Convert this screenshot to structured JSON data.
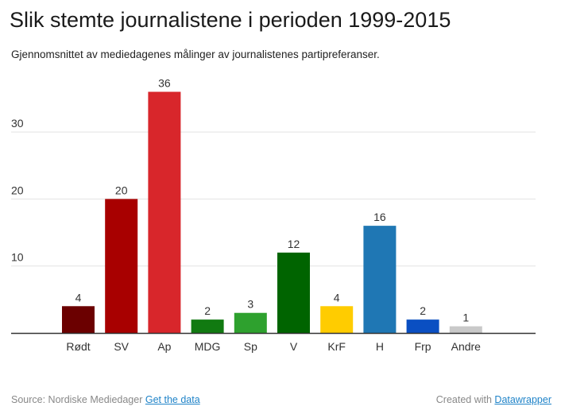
{
  "header": {
    "title": "Slik stemte journalistene i perioden 1999-2015",
    "subtitle": "Gjennomsnittet av mediedagenes målinger av journalistenes partipreferanser."
  },
  "footer": {
    "source_label": "Source: Nordiske Mediedager",
    "get_data_label": "Get the data",
    "created_label": "Created with",
    "datawrapper_label": "Datawrapper"
  },
  "chart_data": {
    "type": "bar",
    "title": "Slik stemte journalistene i perioden 1999-2015",
    "subtitle": "Gjennomsnittet av mediedagenes målinger av journalistenes partipreferanser.",
    "xlabel": "",
    "ylabel": "",
    "ylim": [
      0,
      36
    ],
    "yticks": [
      10,
      20,
      30
    ],
    "grid": true,
    "categories": [
      "Rødt",
      "SV",
      "Ap",
      "MDG",
      "Sp",
      "V",
      "KrF",
      "H",
      "Frp",
      "Andre"
    ],
    "values": [
      4,
      20,
      36,
      2,
      3,
      12,
      4,
      16,
      2,
      1
    ],
    "colors": [
      "#6b0000",
      "#a80000",
      "#d8262b",
      "#117a11",
      "#2ea12e",
      "#006400",
      "#ffcc00",
      "#1f77b4",
      "#0a4fc2",
      "#c9c9c9"
    ]
  }
}
